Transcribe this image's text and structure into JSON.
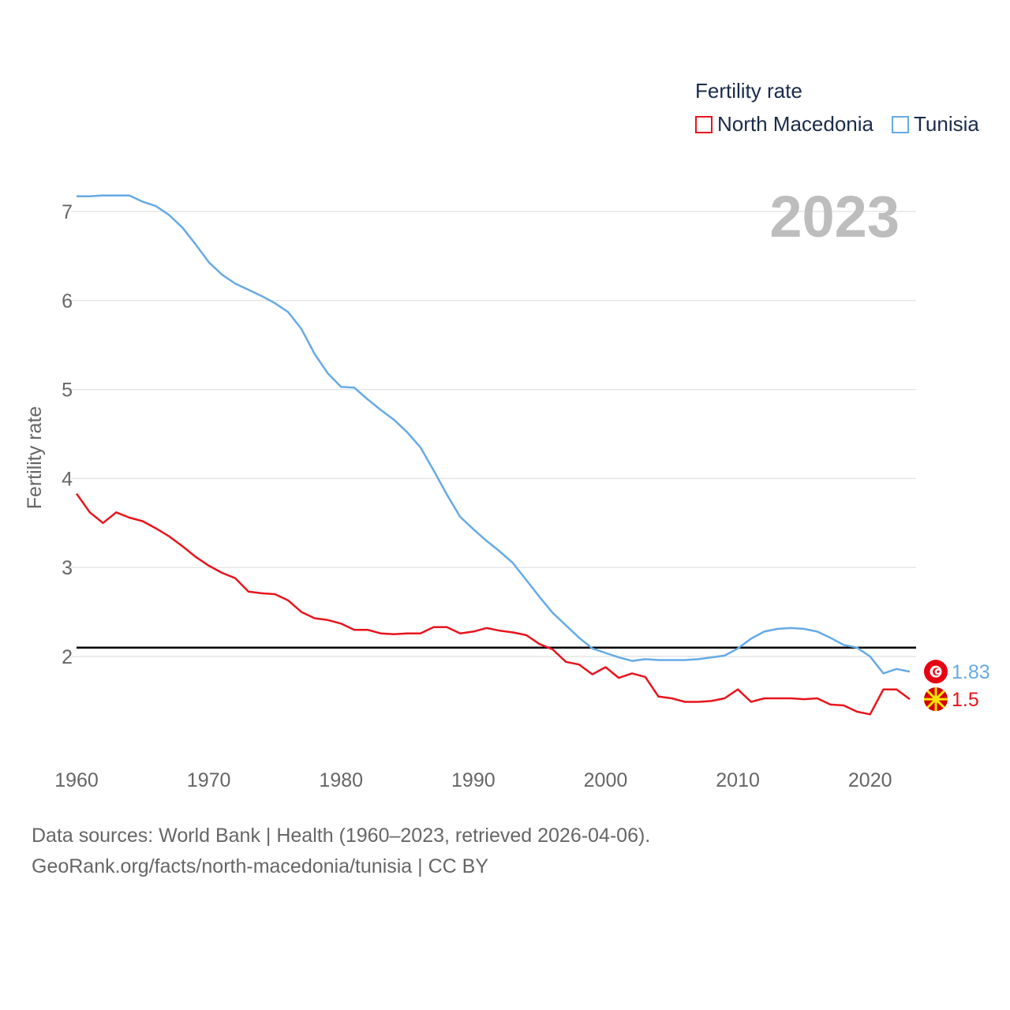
{
  "legend": {
    "title": "Fertility rate",
    "items": [
      {
        "label": "North Macedonia",
        "color": "#e8141c"
      },
      {
        "label": "Tunisia",
        "color": "#66aae6"
      }
    ]
  },
  "year_label": "2023",
  "footer": {
    "line1": "Data sources: World Bank | Health (1960–2023, retrieved 2026-04-06).",
    "line2": "GeoRank.org/facts/north-macedonia/tunisia | CC BY"
  },
  "chart_data": {
    "type": "line",
    "title": "Fertility rate",
    "xlabel": "",
    "ylabel": "Fertility rate",
    "xlim": [
      1960,
      2023
    ],
    "ylim": [
      1.0,
      7.3
    ],
    "yticks": [
      2,
      3,
      4,
      5,
      6,
      7
    ],
    "xticks": [
      1960,
      1970,
      1980,
      1990,
      2000,
      2010,
      2020
    ],
    "reference_line": 2.1,
    "x": [
      1960,
      1961,
      1962,
      1963,
      1964,
      1965,
      1966,
      1967,
      1968,
      1969,
      1970,
      1971,
      1972,
      1973,
      1974,
      1975,
      1976,
      1977,
      1978,
      1979,
      1980,
      1981,
      1982,
      1983,
      1984,
      1985,
      1986,
      1987,
      1988,
      1989,
      1990,
      1991,
      1992,
      1993,
      1994,
      1995,
      1996,
      1997,
      1998,
      1999,
      2000,
      2001,
      2002,
      2003,
      2004,
      2005,
      2006,
      2007,
      2008,
      2009,
      2010,
      2011,
      2012,
      2013,
      2014,
      2015,
      2016,
      2017,
      2018,
      2019,
      2020,
      2021,
      2022,
      2023
    ],
    "series": [
      {
        "name": "North Macedonia",
        "color": "#e8141c",
        "end_label": "1.5",
        "values": [
          3.83,
          3.62,
          3.5,
          3.62,
          3.56,
          3.52,
          3.44,
          3.35,
          3.24,
          3.12,
          3.02,
          2.94,
          2.88,
          2.73,
          2.71,
          2.7,
          2.63,
          2.5,
          2.43,
          2.41,
          2.37,
          2.3,
          2.3,
          2.26,
          2.25,
          2.26,
          2.26,
          2.33,
          2.33,
          2.26,
          2.28,
          2.32,
          2.29,
          2.27,
          2.24,
          2.14,
          2.08,
          1.94,
          1.91,
          1.8,
          1.88,
          1.76,
          1.81,
          1.77,
          1.55,
          1.53,
          1.49,
          1.49,
          1.5,
          1.53,
          1.63,
          1.49,
          1.53,
          1.53,
          1.53,
          1.52,
          1.53,
          1.46,
          1.45,
          1.38,
          1.35,
          1.63,
          1.63,
          1.52
        ]
      },
      {
        "name": "Tunisia",
        "color": "#66aae6",
        "end_label": "1.83",
        "values": [
          7.17,
          7.17,
          7.18,
          7.18,
          7.18,
          7.11,
          7.06,
          6.96,
          6.82,
          6.63,
          6.43,
          6.29,
          6.19,
          6.12,
          6.05,
          5.97,
          5.87,
          5.68,
          5.4,
          5.18,
          5.03,
          5.02,
          4.89,
          4.77,
          4.66,
          4.52,
          4.35,
          4.09,
          3.82,
          3.57,
          3.43,
          3.3,
          3.18,
          3.05,
          2.86,
          2.67,
          2.49,
          2.35,
          2.21,
          2.09,
          2.04,
          1.99,
          1.95,
          1.97,
          1.96,
          1.96,
          1.96,
          1.97,
          1.99,
          2.01,
          2.09,
          2.2,
          2.28,
          2.31,
          2.32,
          2.31,
          2.28,
          2.21,
          2.13,
          2.1,
          2.0,
          1.81,
          1.86,
          1.83
        ]
      }
    ]
  }
}
